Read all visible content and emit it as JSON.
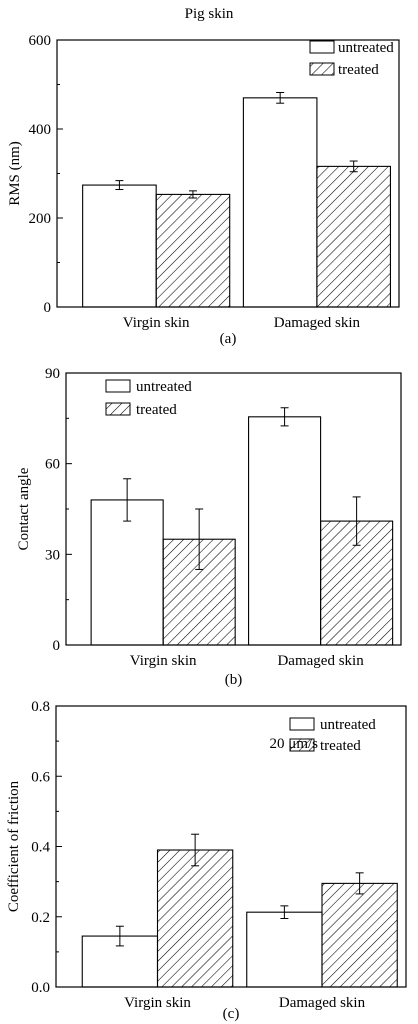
{
  "figure": {
    "title": "Pig skin"
  },
  "chart_data": [
    {
      "type": "bar",
      "panel_label": "(a)",
      "categories": [
        "Virgin skin",
        "Damaged skin"
      ],
      "series": [
        {
          "name": "untreated",
          "values": [
            274,
            470
          ],
          "errors": [
            10,
            12
          ],
          "fill": "none",
          "color": "#000000"
        },
        {
          "name": "treated",
          "values": [
            253,
            316
          ],
          "errors": [
            8,
            12
          ],
          "fill": "hatch",
          "color": "#000000"
        }
      ],
      "ylabel": "RMS (nm)",
      "xlabel": "",
      "ylim": [
        0,
        600
      ],
      "yticks": [
        0,
        200,
        400,
        600
      ],
      "grid": false,
      "legend": "top-right",
      "annotation": ""
    },
    {
      "type": "bar",
      "panel_label": "(b)",
      "categories": [
        "Virgin skin",
        "Damaged skin"
      ],
      "series": [
        {
          "name": "untreated",
          "values": [
            48,
            75.5
          ],
          "errors": [
            7,
            3
          ],
          "fill": "none",
          "color": "#000000"
        },
        {
          "name": "treated",
          "values": [
            35,
            41
          ],
          "errors": [
            10,
            8
          ],
          "fill": "hatch",
          "color": "#000000"
        }
      ],
      "ylabel": "Contact angle",
      "xlabel": "",
      "ylim": [
        0,
        90
      ],
      "yticks": [
        0,
        30,
        60,
        90
      ],
      "grid": false,
      "legend": "top-left",
      "annotation": ""
    },
    {
      "type": "bar",
      "panel_label": "(c)",
      "categories": [
        "Virgin skin",
        "Damaged skin"
      ],
      "series": [
        {
          "name": "untreated",
          "values": [
            0.145,
            0.213
          ],
          "errors": [
            0.028,
            0.018
          ],
          "fill": "none",
          "color": "#000000"
        },
        {
          "name": "treated",
          "values": [
            0.39,
            0.295
          ],
          "errors": [
            0.045,
            0.03
          ],
          "fill": "hatch",
          "color": "#000000"
        }
      ],
      "ylabel": "Coefficient of friction",
      "xlabel": "",
      "ylim": [
        0,
        0.8
      ],
      "yticks": [
        "0.0",
        "0.2",
        "0.4",
        "0.6",
        "0.8"
      ],
      "grid": false,
      "legend": "top-right",
      "annotation": "20 μm/s"
    }
  ]
}
